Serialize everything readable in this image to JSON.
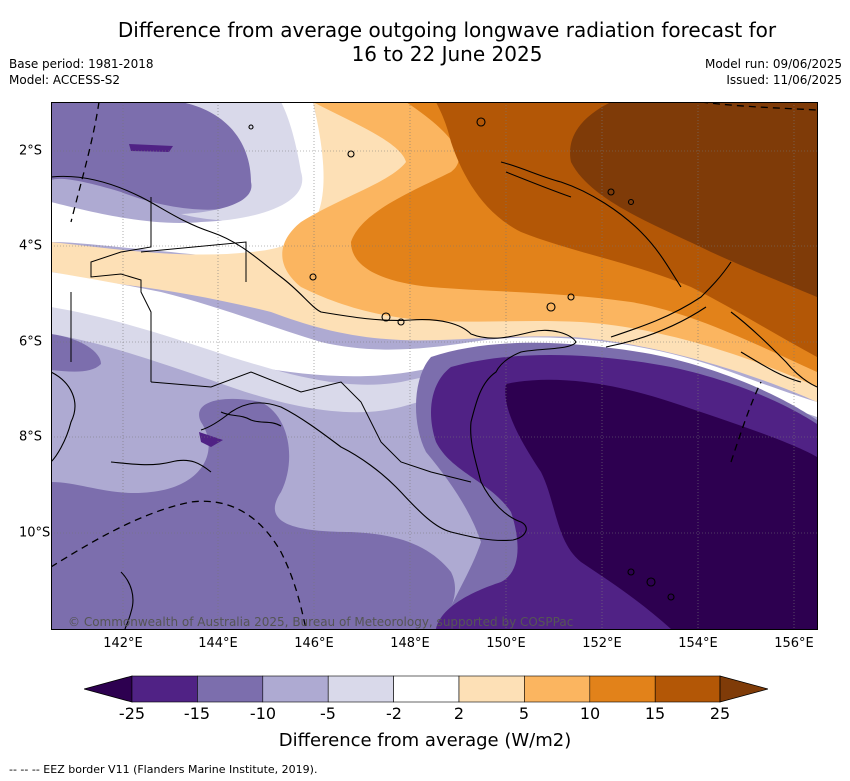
{
  "header": {
    "title_line1": "Difference from average outgoing longwave radiation forecast for",
    "title_line2": "16 to 22 June 2025",
    "base_period": "Base period: 1981-2018",
    "model": "Model: ACCESS-S2",
    "model_run": "Model run: 09/06/2025",
    "issued": "Issued: 11/06/2025"
  },
  "map": {
    "copyright": "© Commonwealth of Australia 2025, Bureau of Meteorology, supported by COSPPac",
    "lon_labels": [
      "142°E",
      "144°E",
      "146°E",
      "148°E",
      "150°E",
      "152°E",
      "154°E",
      "156°E"
    ],
    "lat_labels": [
      "2°S",
      "4°S",
      "6°S",
      "8°S",
      "10°S"
    ],
    "land_icon": "coastline-outline",
    "eez_icon": "dashed-border-line"
  },
  "legend": {
    "title": "Difference from average (W/m2)",
    "ticks": [
      "-25",
      "-15",
      "-10",
      "-5",
      "-2",
      "2",
      "5",
      "10",
      "15",
      "25"
    ],
    "colors": [
      "#2d0050",
      "#502285",
      "#7c6ead",
      "#aeaad2",
      "#d9d9ea",
      "#ffffff",
      "#fde0b6",
      "#fbb560",
      "#e2821a",
      "#b35706",
      "#7f3b08"
    ]
  },
  "footer": {
    "eez_note": "--  --  -- EEZ border V11 (Flanders Marine Institute, 2019)."
  }
}
